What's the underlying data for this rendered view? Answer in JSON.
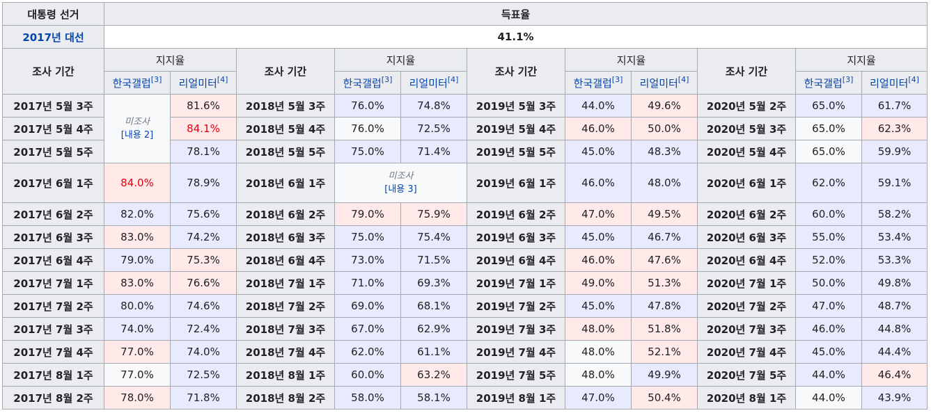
{
  "header": {
    "election_label": "대통령 선거",
    "turnout_label": "득표율",
    "election_year": "2017년 대선",
    "turnout_value": "41.1%",
    "period_label": "조사 기간",
    "support_label": "지지율",
    "gallup_label": "한국갤럽",
    "gallup_ref": "[3]",
    "realmeter_label": "리얼미터",
    "realmeter_ref": "[4]"
  },
  "not_surveyed": {
    "label": "미조사",
    "note1": "[내용 2]",
    "note2": "[내용 3]"
  },
  "colors": {
    "header_bg": "#eaecf0",
    "blue_cell": "#eaeaff",
    "red_cell": "#ffe9e9",
    "neutral_cell": "#f8f9fa",
    "highlight_text": "#e2000f",
    "link": "#0645ad"
  },
  "rows": [
    {
      "c1": {
        "period": "2017년 5월 3주",
        "gallup": "",
        "realmeter": "81.6%"
      },
      "c2": {
        "period": "2018년 5월 3주",
        "gallup": "76.0%",
        "realmeter": "74.8%"
      },
      "c3": {
        "period": "2019년 5월 3주",
        "gallup": "44.0%",
        "realmeter": "49.6%"
      },
      "c4": {
        "period": "2020년 5월 2주",
        "gallup": "65.0%",
        "realmeter": "61.7%"
      }
    },
    {
      "c1": {
        "period": "2017년 5월 4주",
        "gallup": "",
        "realmeter": "84.1%"
      },
      "c2": {
        "period": "2018년 5월 4주",
        "gallup": "76.0%",
        "realmeter": "72.5%"
      },
      "c3": {
        "period": "2019년 5월 4주",
        "gallup": "46.0%",
        "realmeter": "50.0%"
      },
      "c4": {
        "period": "2020년 5월 3주",
        "gallup": "65.0%",
        "realmeter": "62.3%"
      }
    },
    {
      "c1": {
        "period": "2017년 5월 5주",
        "gallup": "",
        "realmeter": "78.1%"
      },
      "c2": {
        "period": "2018년 5월 5주",
        "gallup": "75.0%",
        "realmeter": "71.4%"
      },
      "c3": {
        "period": "2019년 5월 5주",
        "gallup": "45.0%",
        "realmeter": "48.3%"
      },
      "c4": {
        "period": "2020년 5월 4주",
        "gallup": "65.0%",
        "realmeter": "59.9%"
      }
    },
    {
      "c1": {
        "period": "2017년 6월 1주",
        "gallup": "84.0%",
        "realmeter": "78.9%"
      },
      "c2": {
        "period": "2018년 6월 1주",
        "gallup": "",
        "realmeter": ""
      },
      "c3": {
        "period": "2019년 6월 1주",
        "gallup": "46.0%",
        "realmeter": "48.0%"
      },
      "c4": {
        "period": "2020년 6월 1주",
        "gallup": "62.0%",
        "realmeter": "59.1%"
      }
    },
    {
      "c1": {
        "period": "2017년 6월 2주",
        "gallup": "82.0%",
        "realmeter": "75.6%"
      },
      "c2": {
        "period": "2018년 6월 2주",
        "gallup": "79.0%",
        "realmeter": "75.9%"
      },
      "c3": {
        "period": "2019년 6월 2주",
        "gallup": "47.0%",
        "realmeter": "49.5%"
      },
      "c4": {
        "period": "2020년 6월 2주",
        "gallup": "60.0%",
        "realmeter": "58.2%"
      }
    },
    {
      "c1": {
        "period": "2017년 6월 3주",
        "gallup": "83.0%",
        "realmeter": "74.2%"
      },
      "c2": {
        "period": "2018년 6월 3주",
        "gallup": "75.0%",
        "realmeter": "75.4%"
      },
      "c3": {
        "period": "2019년 6월 3주",
        "gallup": "45.0%",
        "realmeter": "46.7%"
      },
      "c4": {
        "period": "2020년 6월 3주",
        "gallup": "55.0%",
        "realmeter": "53.4%"
      }
    },
    {
      "c1": {
        "period": "2017년 6월 4주",
        "gallup": "79.0%",
        "realmeter": "75.3%"
      },
      "c2": {
        "period": "2018년 6월 4주",
        "gallup": "73.0%",
        "realmeter": "71.5%"
      },
      "c3": {
        "period": "2019년 6월 4주",
        "gallup": "46.0%",
        "realmeter": "47.6%"
      },
      "c4": {
        "period": "2020년 6월 4주",
        "gallup": "52.0%",
        "realmeter": "53.3%"
      }
    },
    {
      "c1": {
        "period": "2017년 7월 1주",
        "gallup": "83.0%",
        "realmeter": "76.6%"
      },
      "c2": {
        "period": "2018년 7월 1주",
        "gallup": "71.0%",
        "realmeter": "69.3%"
      },
      "c3": {
        "period": "2019년 7월 1주",
        "gallup": "49.0%",
        "realmeter": "51.3%"
      },
      "c4": {
        "period": "2020년 7월 1주",
        "gallup": "50.0%",
        "realmeter": "49.8%"
      }
    },
    {
      "c1": {
        "period": "2017년 7월 2주",
        "gallup": "80.0%",
        "realmeter": "74.6%"
      },
      "c2": {
        "period": "2018년 7월 2주",
        "gallup": "69.0%",
        "realmeter": "68.1%"
      },
      "c3": {
        "period": "2019년 7월 2주",
        "gallup": "45.0%",
        "realmeter": "47.8%"
      },
      "c4": {
        "period": "2020년 7월 2주",
        "gallup": "47.0%",
        "realmeter": "48.7%"
      }
    },
    {
      "c1": {
        "period": "2017년 7월 3주",
        "gallup": "74.0%",
        "realmeter": "72.4%"
      },
      "c2": {
        "period": "2018년 7월 3주",
        "gallup": "67.0%",
        "realmeter": "62.9%"
      },
      "c3": {
        "period": "2019년 7월 3주",
        "gallup": "48.0%",
        "realmeter": "51.8%"
      },
      "c4": {
        "period": "2020년 7월 3주",
        "gallup": "46.0%",
        "realmeter": "44.8%"
      }
    },
    {
      "c1": {
        "period": "2017년 7월 4주",
        "gallup": "77.0%",
        "realmeter": "74.0%"
      },
      "c2": {
        "period": "2018년 7월 4주",
        "gallup": "62.0%",
        "realmeter": "61.1%"
      },
      "c3": {
        "period": "2019년 7월 4주",
        "gallup": "48.0%",
        "realmeter": "52.1%"
      },
      "c4": {
        "period": "2020년 7월 4주",
        "gallup": "45.0%",
        "realmeter": "44.4%"
      }
    },
    {
      "c1": {
        "period": "2017년 8월 1주",
        "gallup": "77.0%",
        "realmeter": "72.5%"
      },
      "c2": {
        "period": "2018년 8월 1주",
        "gallup": "60.0%",
        "realmeter": "63.2%"
      },
      "c3": {
        "period": "2019년 7월 5주",
        "gallup": "48.0%",
        "realmeter": "49.9%"
      },
      "c4": {
        "period": "2020년 7월 5주",
        "gallup": "44.0%",
        "realmeter": "46.4%"
      }
    },
    {
      "c1": {
        "period": "2017년 8월 2주",
        "gallup": "78.0%",
        "realmeter": "71.8%"
      },
      "c2": {
        "period": "2018년 8월 2주",
        "gallup": "58.0%",
        "realmeter": "58.1%"
      },
      "c3": {
        "period": "2019년 8월 1주",
        "gallup": "47.0%",
        "realmeter": "50.4%"
      },
      "c4": {
        "period": "2020년 8월 1주",
        "gallup": "44.0%",
        "realmeter": "43.9%"
      }
    }
  ]
}
